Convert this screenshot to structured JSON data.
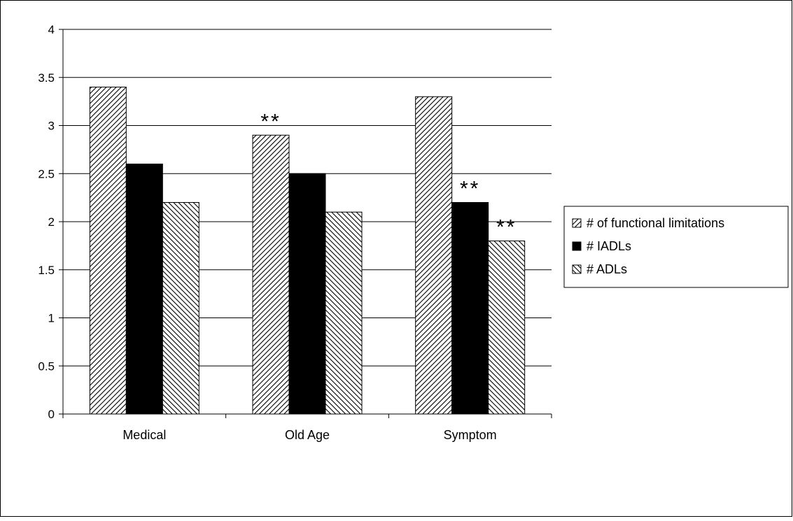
{
  "chart_data": {
    "type": "bar",
    "categories": [
      "Medical",
      "Old Age",
      "Symptom"
    ],
    "series": [
      {
        "name": "# of functional limitations",
        "values": [
          3.4,
          2.9,
          3.3
        ],
        "pattern": "hatch-forward"
      },
      {
        "name": "# IADLs",
        "values": [
          2.6,
          2.5,
          2.2
        ],
        "pattern": "solid"
      },
      {
        "name": "# ADLs",
        "values": [
          2.2,
          2.1,
          1.8
        ],
        "pattern": "hatch-backward"
      }
    ],
    "y_ticks": [
      "0",
      "0.5",
      "1",
      "1.5",
      "2",
      "2.5",
      "3",
      "3.5",
      "4"
    ],
    "ylim": [
      0,
      4
    ],
    "grid": true,
    "legend_position": "right",
    "annotations": [
      {
        "text": "**",
        "category": "Old Age",
        "series": "# of functional limitations"
      },
      {
        "text": "**",
        "category": "Symptom",
        "series": "# IADLs"
      },
      {
        "text": "**",
        "category": "Symptom",
        "series": "# ADLs"
      }
    ],
    "colors": {
      "bar_fill": "#000000",
      "background": "#ffffff",
      "grid": "#000000"
    }
  }
}
